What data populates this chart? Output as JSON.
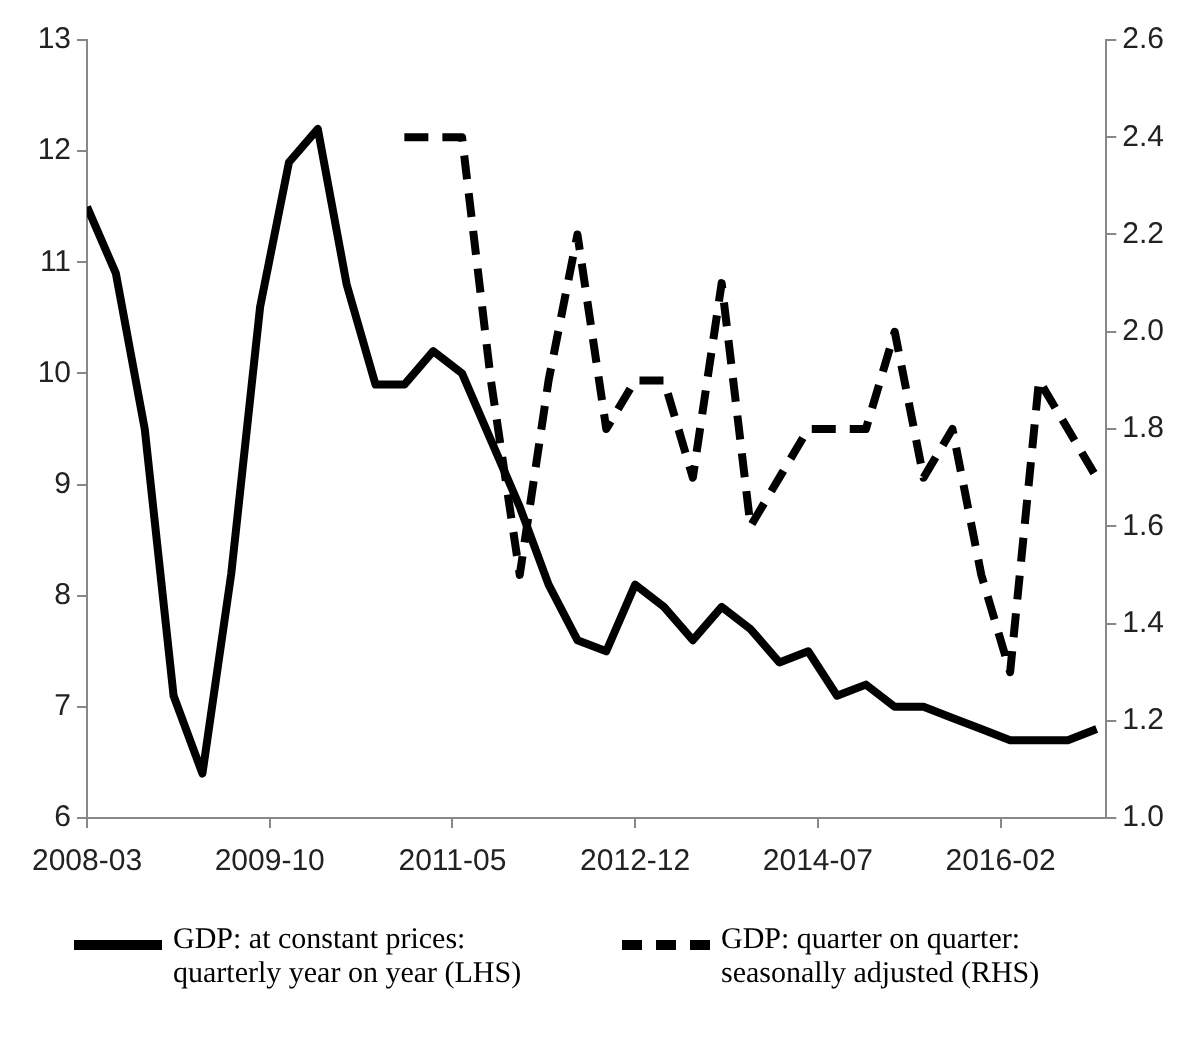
{
  "chart_data": {
    "type": "line",
    "x": [
      "2008-03",
      "2008-06",
      "2008-09",
      "2008-12",
      "2009-03",
      "2009-06",
      "2009-09",
      "2009-12",
      "2010-03",
      "2010-06",
      "2010-09",
      "2010-12",
      "2011-03",
      "2011-06",
      "2011-09",
      "2011-12",
      "2012-03",
      "2012-06",
      "2012-09",
      "2012-12",
      "2013-03",
      "2013-06",
      "2013-09",
      "2013-12",
      "2014-03",
      "2014-06",
      "2014-09",
      "2014-12",
      "2015-03",
      "2015-06",
      "2015-09",
      "2015-12",
      "2016-03",
      "2016-06",
      "2016-09",
      "2016-12"
    ],
    "series": [
      {
        "name": "GDP: at constant prices: quarterly year on year (LHS)",
        "color": "#000000",
        "line_style": "solid",
        "values": [
          11.5,
          10.9,
          9.5,
          7.1,
          6.4,
          8.2,
          10.6,
          11.9,
          12.2,
          10.8,
          9.9,
          9.9,
          10.2,
          10.0,
          9.4,
          8.8,
          8.1,
          7.6,
          7.5,
          8.1,
          7.9,
          7.6,
          7.9,
          7.7,
          7.4,
          7.5,
          7.1,
          7.2,
          7.0,
          7.0,
          6.9,
          6.8,
          6.7,
          6.7,
          6.7,
          6.8
        ]
      },
      {
        "name": "GDP: quarter on quarter: seasonally adjusted (RHS)",
        "color": "#000000",
        "line_style": "dashed",
        "axis": "y2",
        "values": [
          null,
          null,
          null,
          null,
          null,
          null,
          null,
          null,
          null,
          null,
          null,
          2.4,
          2.4,
          2.4,
          1.9,
          1.5,
          1.9,
          2.2,
          1.8,
          1.9,
          1.9,
          1.7,
          2.1,
          1.6,
          1.7,
          1.8,
          1.8,
          1.8,
          2.0,
          1.7,
          1.8,
          1.5,
          1.3,
          1.9,
          1.8,
          1.7
        ]
      }
    ],
    "xlim": [
      "2008-03",
      "2017-01"
    ],
    "xticks": [
      "2008-03",
      "2009-10",
      "2011-05",
      "2012-12",
      "2014-07",
      "2016-02"
    ],
    "ylim": [
      6,
      13
    ],
    "yticks": [
      6,
      7,
      8,
      9,
      10,
      11,
      12,
      13
    ],
    "y2lim": [
      1.0,
      2.6
    ],
    "y2ticks": [
      {
        "value": 1.0,
        "label": "1.0"
      },
      {
        "value": 1.2,
        "label": "1.2"
      },
      {
        "value": 1.4,
        "label": "1.4"
      },
      {
        "value": 1.6,
        "label": "1.6"
      },
      {
        "value": 1.8,
        "label": "1.8"
      },
      {
        "value": 2.0,
        "label": "2.0"
      },
      {
        "value": 2.2,
        "label": "2.2"
      },
      {
        "value": 2.4,
        "label": "2.4"
      },
      {
        "value": 2.6,
        "label": "2.6"
      }
    ],
    "grid": false,
    "legend": "bottom",
    "marker": "none"
  }
}
